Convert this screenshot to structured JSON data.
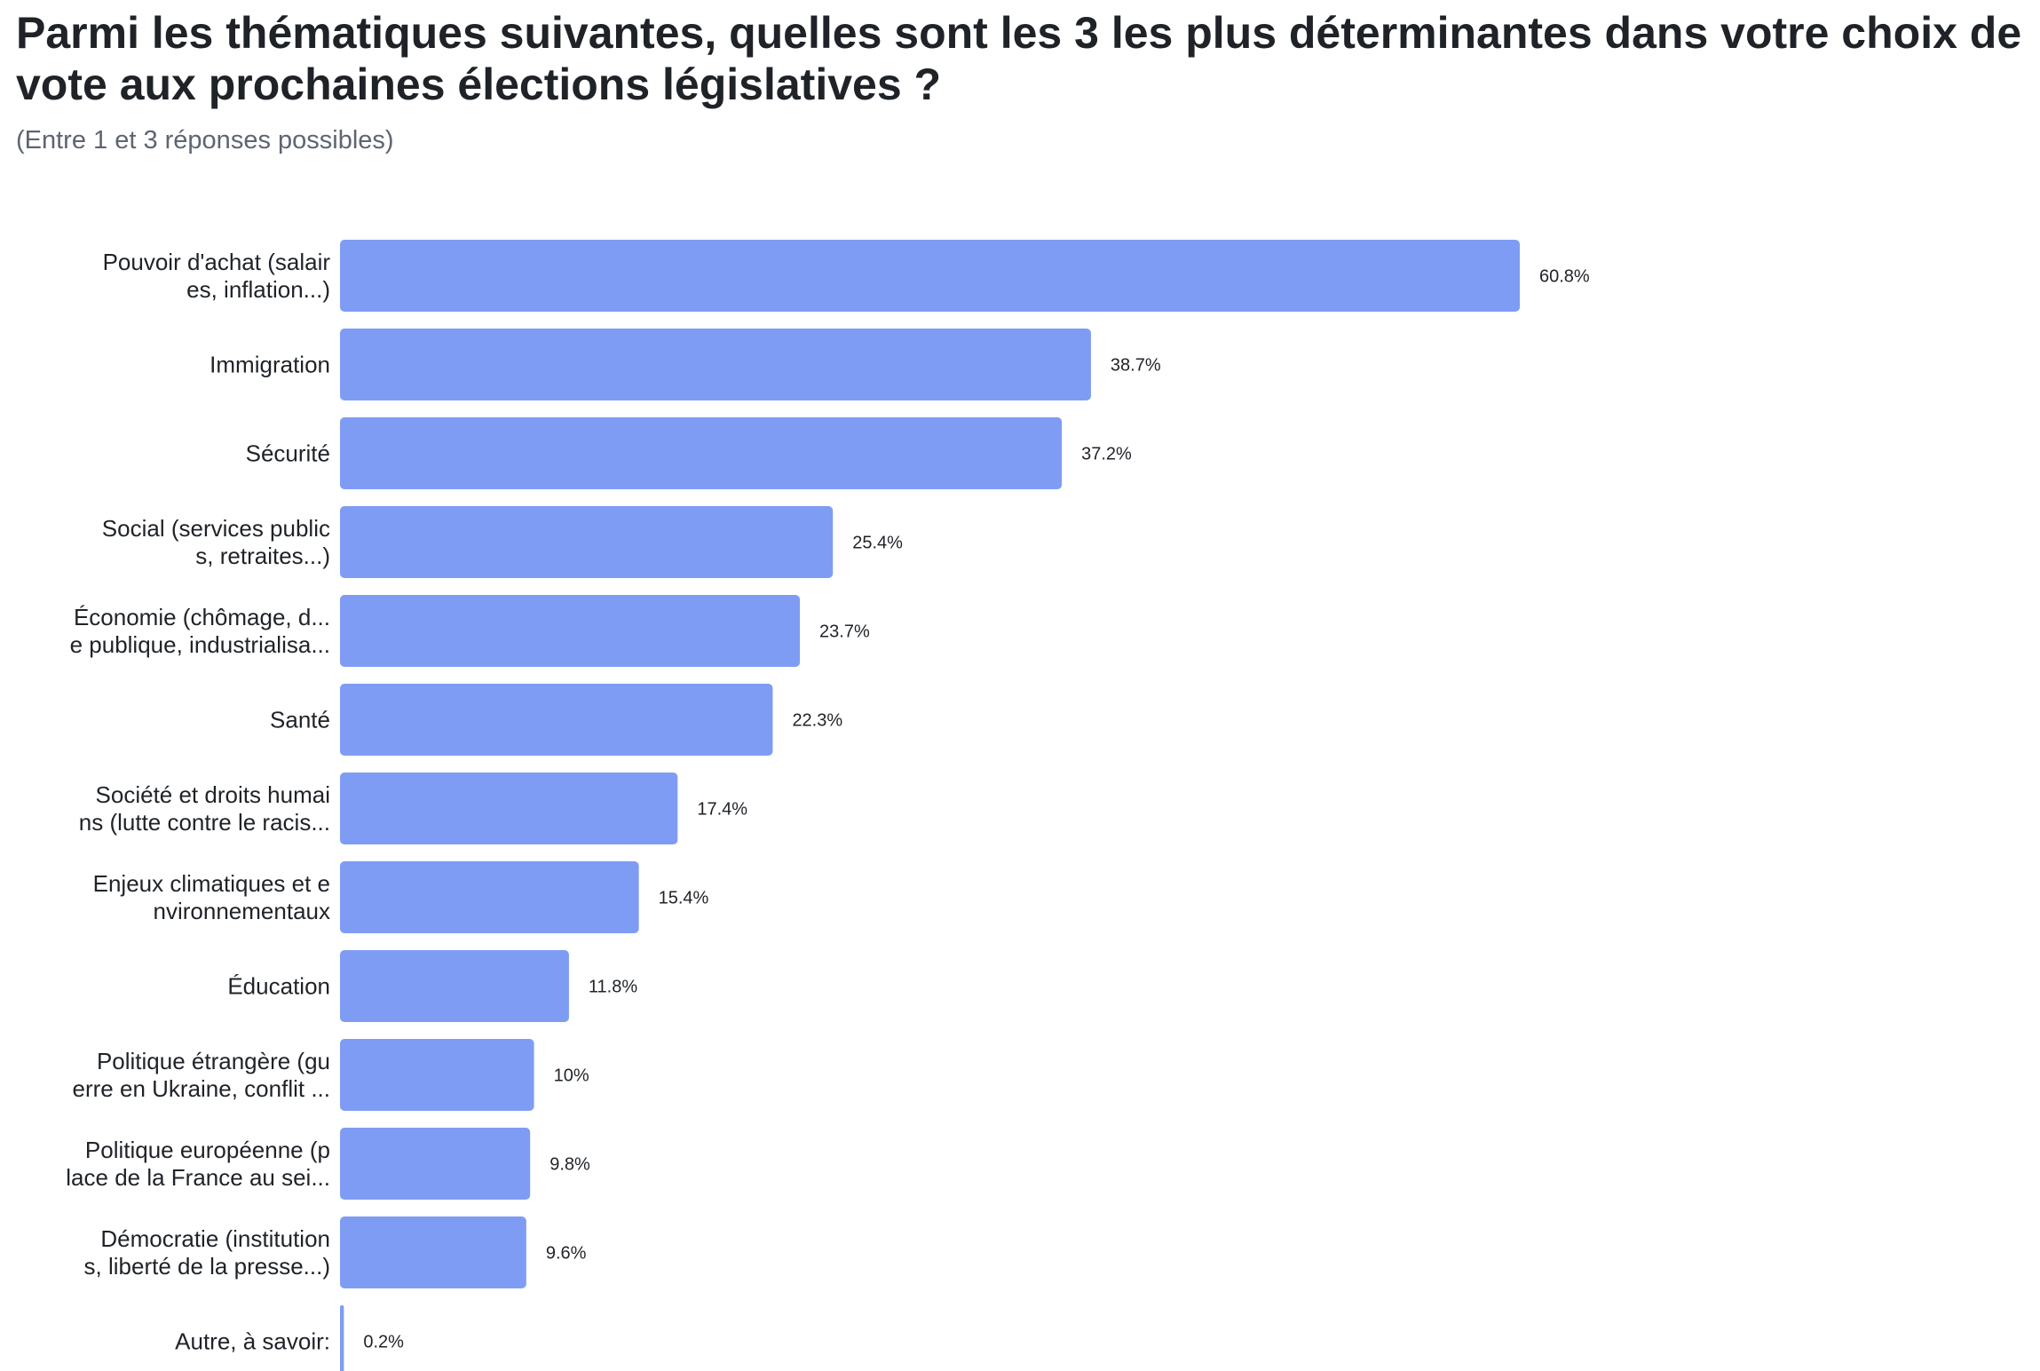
{
  "header": {
    "title": "Parmi les thématiques suivantes, quelles sont les 3 les plus déterminantes dans votre choix de vote aux prochaines élections législatives ?",
    "subtitle": "(Entre 1 et 3 réponses possibles)"
  },
  "colors": {
    "bar": "#7f9cf5",
    "label_text": "#1f2328",
    "value_text": "#1f2328"
  },
  "chart_data": {
    "type": "bar",
    "orientation": "horizontal",
    "title": "Parmi les thématiques suivantes, quelles sont les 3 les plus déterminantes dans votre choix de vote aux prochaines élections législatives ?",
    "subtitle": "(Entre 1 et 3 réponses possibles)",
    "xlabel": "",
    "ylabel": "",
    "grid": false,
    "legend": "none",
    "xlim": [
      0,
      60.8
    ],
    "unit": "%",
    "categories": [
      [
        "Pouvoir d'achat (salair",
        "es, inflation...)"
      ],
      [
        "Immigration"
      ],
      [
        "Sécurité"
      ],
      [
        "Social (services public",
        "s, retraites...)"
      ],
      [
        "Économie (chômage, d...",
        "e publique, industrialisa..."
      ],
      [
        "Santé"
      ],
      [
        "Société et droits humai",
        "ns (lutte contre le racis..."
      ],
      [
        "Enjeux climatiques et e",
        "nvironnementaux"
      ],
      [
        "Éducation"
      ],
      [
        "Politique étrangère (gu",
        "erre en Ukraine, conflit ..."
      ],
      [
        "Politique européenne (p",
        "lace de la France au sei..."
      ],
      [
        "Démocratie (institution",
        "s, liberté de la presse...)"
      ],
      [
        "Autre, à savoir:"
      ]
    ],
    "values": [
      60.8,
      38.7,
      37.2,
      25.4,
      23.7,
      22.3,
      17.4,
      15.4,
      11.8,
      10,
      9.8,
      9.6,
      0.2
    ],
    "value_labels": [
      "60.8%",
      "38.7%",
      "37.2%",
      "25.4%",
      "23.7%",
      "22.3%",
      "17.4%",
      "15.4%",
      "11.8%",
      "10%",
      "9.8%",
      "9.6%",
      "0.2%"
    ]
  }
}
